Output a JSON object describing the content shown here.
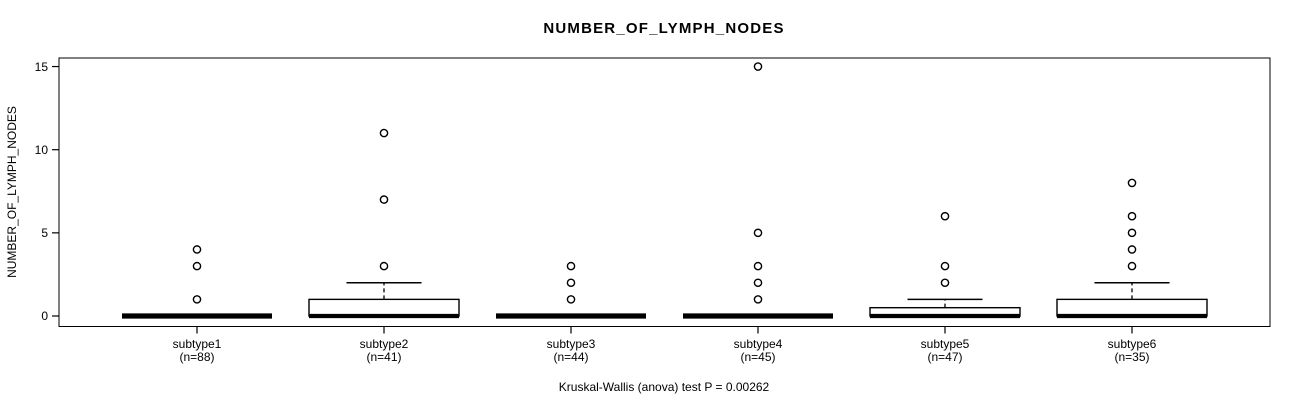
{
  "chart_data": {
    "type": "box",
    "title": "NUMBER_OF_LYMPH_NODES",
    "ylabel": "NUMBER_OF_LYMPH_NODES",
    "caption": "Kruskal-Wallis (anova) test P = 0.00262",
    "ylim": [
      0,
      15
    ],
    "yticks": [
      0,
      5,
      10,
      15
    ],
    "grid": false,
    "legend": "none",
    "categories": [
      "subtype1",
      "subtype2",
      "subtype3",
      "subtype4",
      "subtype5",
      "subtype6"
    ],
    "groups": [
      {
        "name": "subtype1",
        "n": 88,
        "n_label": "(n=88)",
        "whisker_low": 0,
        "q1": 0,
        "median": 0,
        "q3": 0,
        "whisker_high": 0,
        "outliers": [
          1,
          3,
          4
        ]
      },
      {
        "name": "subtype2",
        "n": 41,
        "n_label": "(n=41)",
        "whisker_low": 0,
        "q1": 0,
        "median": 0,
        "q3": 1,
        "whisker_high": 2,
        "outliers": [
          3,
          7,
          11
        ]
      },
      {
        "name": "subtype3",
        "n": 44,
        "n_label": "(n=44)",
        "whisker_low": 0,
        "q1": 0,
        "median": 0,
        "q3": 0,
        "whisker_high": 0,
        "outliers": [
          1,
          2,
          3
        ]
      },
      {
        "name": "subtype4",
        "n": 45,
        "n_label": "(n=45)",
        "whisker_low": 0,
        "q1": 0,
        "median": 0,
        "q3": 0,
        "whisker_high": 0,
        "outliers": [
          1,
          2,
          3,
          5,
          15
        ]
      },
      {
        "name": "subtype5",
        "n": 47,
        "n_label": "(n=47)",
        "whisker_low": 0,
        "q1": 0,
        "median": 0,
        "q3": 0.5,
        "whisker_high": 1,
        "outliers": [
          2,
          3,
          6
        ]
      },
      {
        "name": "subtype6",
        "n": 35,
        "n_label": "(n=35)",
        "whisker_low": 0,
        "q1": 0,
        "median": 0,
        "q3": 1,
        "whisker_high": 2,
        "outliers": [
          3,
          4,
          5,
          6,
          8
        ]
      }
    ],
    "colors": {
      "stroke": "#000000",
      "box_fill": "#ffffff",
      "background": "#ffffff"
    }
  }
}
